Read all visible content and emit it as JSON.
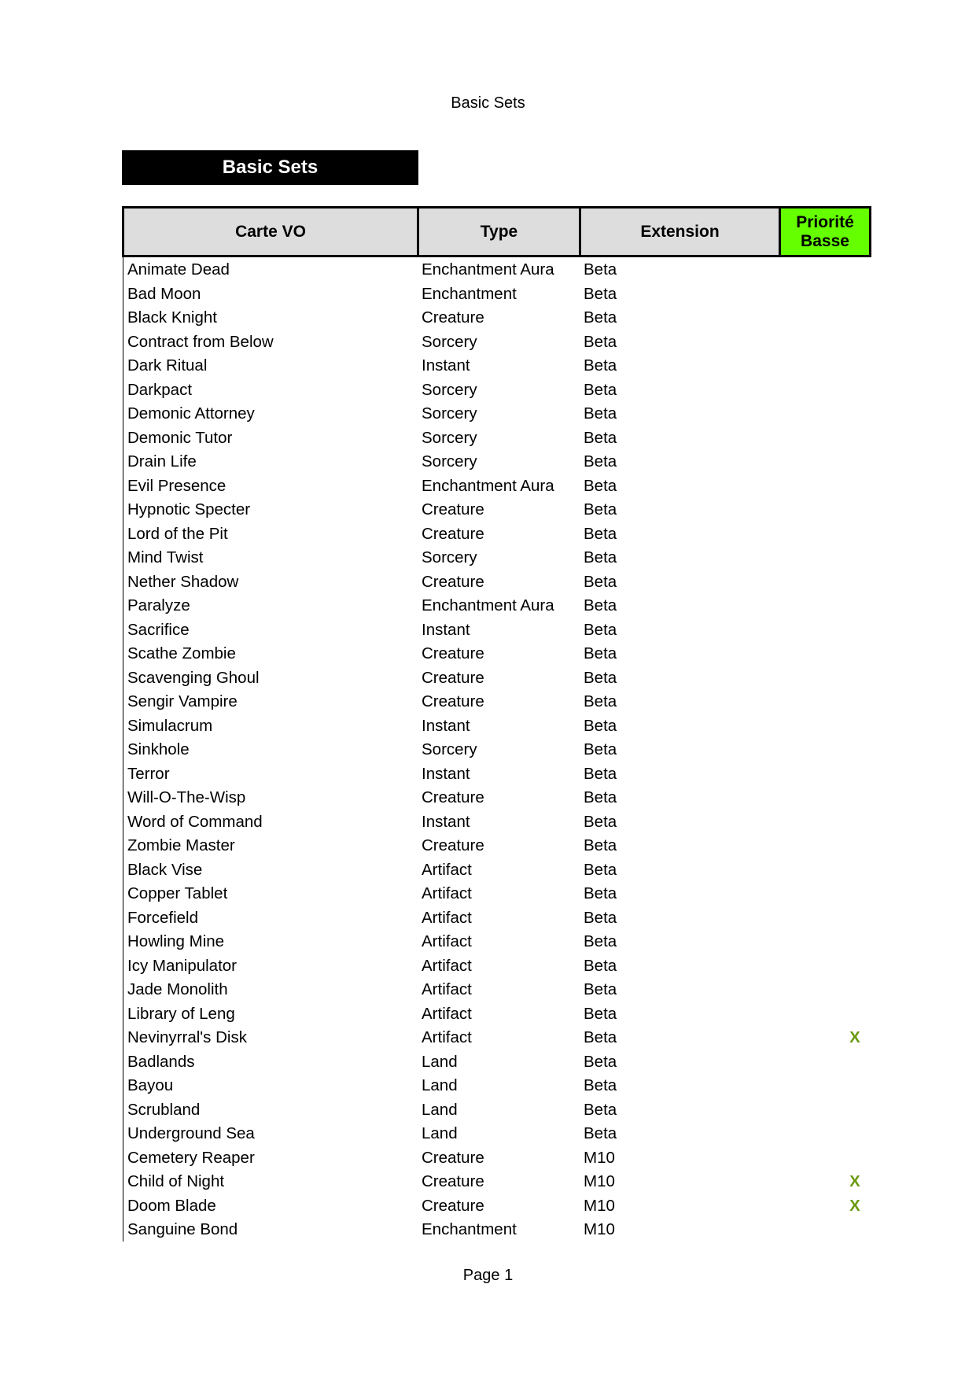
{
  "page_title": "Basic Sets",
  "banner": "Basic Sets",
  "columns": [
    "Carte VO",
    "Type",
    "Extension",
    "Priorité Basse"
  ],
  "colors": {
    "header_bg": "#dddddd",
    "priority_bg": "#66ff00",
    "mark": "#6a9a10"
  },
  "rows": [
    [
      "Animate Dead",
      "Enchantment Aura",
      "Beta",
      ""
    ],
    [
      "Bad Moon",
      "Enchantment",
      "Beta",
      ""
    ],
    [
      "Black Knight",
      "Creature",
      "Beta",
      ""
    ],
    [
      "Contract from Below",
      "Sorcery",
      "Beta",
      ""
    ],
    [
      "Dark Ritual",
      "Instant",
      "Beta",
      ""
    ],
    [
      "Darkpact",
      "Sorcery",
      "Beta",
      ""
    ],
    [
      "Demonic Attorney",
      "Sorcery",
      "Beta",
      ""
    ],
    [
      "Demonic Tutor",
      "Sorcery",
      "Beta",
      ""
    ],
    [
      "Drain Life",
      "Sorcery",
      "Beta",
      ""
    ],
    [
      "Evil Presence",
      "Enchantment Aura",
      "Beta",
      ""
    ],
    [
      "Hypnotic Specter",
      "Creature",
      "Beta",
      ""
    ],
    [
      "Lord of the Pit",
      "Creature",
      "Beta",
      ""
    ],
    [
      "Mind Twist",
      "Sorcery",
      "Beta",
      ""
    ],
    [
      "Nether Shadow",
      "Creature",
      "Beta",
      ""
    ],
    [
      "Paralyze",
      "Enchantment Aura",
      "Beta",
      ""
    ],
    [
      "Sacrifice",
      "Instant",
      "Beta",
      ""
    ],
    [
      "Scathe Zombie",
      "Creature",
      "Beta",
      ""
    ],
    [
      "Scavenging Ghoul",
      "Creature",
      "Beta",
      ""
    ],
    [
      "Sengir Vampire",
      "Creature",
      "Beta",
      ""
    ],
    [
      "Simulacrum",
      "Instant",
      "Beta",
      ""
    ],
    [
      "Sinkhole",
      "Sorcery",
      "Beta",
      ""
    ],
    [
      "Terror",
      "Instant",
      "Beta",
      ""
    ],
    [
      "Will-O-The-Wisp",
      "Creature",
      "Beta",
      ""
    ],
    [
      "Word of Command",
      "Instant",
      "Beta",
      ""
    ],
    [
      "Zombie Master",
      "Creature",
      "Beta",
      ""
    ],
    [
      "Black Vise",
      "Artifact",
      "Beta",
      ""
    ],
    [
      "Copper Tablet",
      "Artifact",
      "Beta",
      ""
    ],
    [
      "Forcefield",
      "Artifact",
      "Beta",
      ""
    ],
    [
      "Howling Mine",
      "Artifact",
      "Beta",
      ""
    ],
    [
      "Icy Manipulator",
      "Artifact",
      "Beta",
      ""
    ],
    [
      "Jade Monolith",
      "Artifact",
      "Beta",
      ""
    ],
    [
      "Library of Leng",
      "Artifact",
      "Beta",
      ""
    ],
    [
      "Nevinyrral's Disk",
      "Artifact",
      "Beta",
      "X"
    ],
    [
      "Badlands",
      "Land",
      "Beta",
      ""
    ],
    [
      "Bayou",
      "Land",
      "Beta",
      ""
    ],
    [
      "Scrubland",
      "Land",
      "Beta",
      ""
    ],
    [
      "Underground Sea",
      "Land",
      "Beta",
      ""
    ],
    [
      "Cemetery Reaper",
      "Creature",
      "M10",
      ""
    ],
    [
      "Child of Night",
      "Creature",
      "M10",
      "X"
    ],
    [
      "Doom Blade",
      "Creature",
      "M10",
      "X"
    ],
    [
      "Sanguine Bond",
      "Enchantment",
      "M10",
      ""
    ]
  ],
  "footer": "Page 1"
}
